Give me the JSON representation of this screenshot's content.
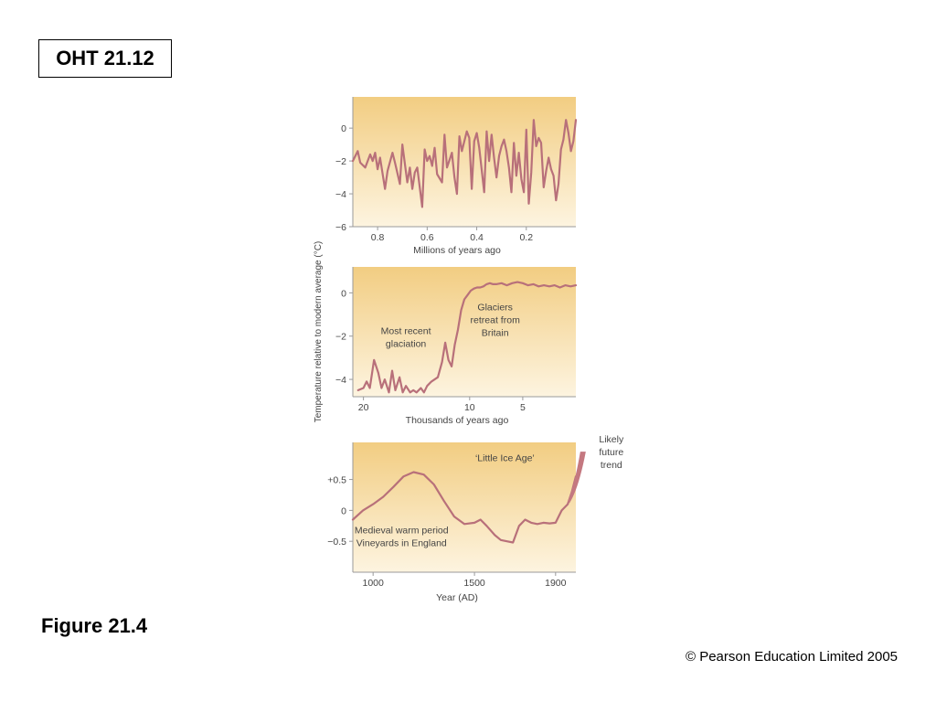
{
  "slide": {
    "oht_label": "OHT 21.12",
    "figure_label": "Figure 21.4",
    "copyright": "© Pearson Education Limited 2005"
  },
  "colors": {
    "line": "#b8707a",
    "panel_top": "#f2cd82",
    "panel_bottom": "#fdf4e0",
    "axis": "#9a9a9a",
    "future_band": "#c47880"
  },
  "chart_data": [
    {
      "type": "line",
      "ylabel": "Temperature relative to modern average (°C)",
      "xlabel": "Millions of years ago",
      "x_reversed": true,
      "xlim": [
        0.9,
        0.0
      ],
      "ylim": [
        -6,
        1.9
      ],
      "xticks": [
        0.8,
        0.6,
        0.4,
        0.2
      ],
      "xtick_labels": [
        "0.8",
        "0.6",
        "0.4",
        "0.2"
      ],
      "yticks": [
        0,
        -2,
        -4,
        -6
      ],
      "ytick_labels": [
        "0",
        "−2",
        "−4",
        "−6"
      ],
      "series": [
        {
          "x": [
            0.9,
            0.88,
            0.87,
            0.85,
            0.83,
            0.82,
            0.81,
            0.8,
            0.79,
            0.77,
            0.76,
            0.74,
            0.73,
            0.71,
            0.7,
            0.68,
            0.67,
            0.66,
            0.65,
            0.64,
            0.62,
            0.61,
            0.6,
            0.59,
            0.58,
            0.57,
            0.56,
            0.54,
            0.53,
            0.52,
            0.5,
            0.49,
            0.48,
            0.47,
            0.46,
            0.44,
            0.43,
            0.42,
            0.41,
            0.4,
            0.39,
            0.37,
            0.36,
            0.35,
            0.34,
            0.33,
            0.32,
            0.31,
            0.3,
            0.29,
            0.28,
            0.27,
            0.26,
            0.25,
            0.24,
            0.23,
            0.22,
            0.21,
            0.2,
            0.19,
            0.18,
            0.17,
            0.16,
            0.15,
            0.14,
            0.13,
            0.12,
            0.11,
            0.1,
            0.09,
            0.08,
            0.07,
            0.06,
            0.05,
            0.04,
            0.03,
            0.02,
            0.01,
            0.0
          ],
          "y": [
            -2.0,
            -1.4,
            -2.1,
            -2.4,
            -1.6,
            -2.0,
            -1.5,
            -2.5,
            -1.8,
            -3.7,
            -2.6,
            -1.5,
            -2.1,
            -3.4,
            -1.0,
            -3.3,
            -2.4,
            -3.7,
            -2.7,
            -2.4,
            -4.8,
            -1.3,
            -2.0,
            -1.7,
            -2.3,
            -1.2,
            -2.8,
            -3.3,
            -0.4,
            -2.4,
            -1.5,
            -3.0,
            -4.0,
            -0.5,
            -1.4,
            -0.2,
            -0.6,
            -3.7,
            -0.8,
            -0.3,
            -1.2,
            -3.9,
            -0.2,
            -2.0,
            -0.4,
            -1.8,
            -3.0,
            -1.7,
            -1.1,
            -0.7,
            -1.4,
            -2.4,
            -3.9,
            -0.9,
            -2.9,
            -1.5,
            -3.1,
            -3.9,
            -0.1,
            -4.6,
            -2.7,
            0.5,
            -1.1,
            -0.6,
            -0.9,
            -3.6,
            -2.6,
            -1.8,
            -2.5,
            -2.9,
            -4.4,
            -3.4,
            -1.3,
            -0.7,
            0.5,
            -0.3,
            -1.4,
            -0.8,
            0.5
          ]
        }
      ]
    },
    {
      "type": "line",
      "xlabel": "Thousands of years ago",
      "x_reversed": true,
      "xlim": [
        21,
        0
      ],
      "ylim": [
        -4.8,
        1.2
      ],
      "xticks": [
        20,
        10,
        5
      ],
      "xtick_labels": [
        "20",
        "10",
        "5"
      ],
      "yticks": [
        0,
        -2,
        -4
      ],
      "ytick_labels": [
        "0",
        "−2",
        "−4"
      ],
      "annotations": [
        {
          "lines": [
            "Most recent",
            "glaciation"
          ],
          "x": 16,
          "y": -1.9
        },
        {
          "lines": [
            "Glaciers",
            "retreat from",
            "Britain"
          ],
          "x": 7.6,
          "y": -0.8
        }
      ],
      "series": [
        {
          "x": [
            20.5,
            20.0,
            19.7,
            19.4,
            19.0,
            18.6,
            18.3,
            18.0,
            17.6,
            17.3,
            17.0,
            16.6,
            16.3,
            16.0,
            15.6,
            15.3,
            15.0,
            14.6,
            14.3,
            14.0,
            13.6,
            13.3,
            13.0,
            12.6,
            12.3,
            12.0,
            11.7,
            11.4,
            11.1,
            10.8,
            10.5,
            10.2,
            9.9,
            9.6,
            9.3,
            9.0,
            8.7,
            8.4,
            8.1,
            7.8,
            7.5,
            7.0,
            6.5,
            6.0,
            5.5,
            5.0,
            4.5,
            4.0,
            3.5,
            3.0,
            2.5,
            2.0,
            1.5,
            1.0,
            0.5,
            0.0
          ],
          "y": [
            -4.5,
            -4.4,
            -4.1,
            -4.4,
            -3.1,
            -3.7,
            -4.4,
            -4.0,
            -4.6,
            -3.6,
            -4.5,
            -3.9,
            -4.6,
            -4.3,
            -4.6,
            -4.5,
            -4.6,
            -4.4,
            -4.6,
            -4.3,
            -4.1,
            -4.0,
            -3.9,
            -3.2,
            -2.3,
            -3.1,
            -3.4,
            -2.4,
            -1.7,
            -0.8,
            -0.3,
            -0.1,
            0.1,
            0.2,
            0.25,
            0.25,
            0.3,
            0.4,
            0.45,
            0.4,
            0.4,
            0.45,
            0.35,
            0.45,
            0.5,
            0.45,
            0.35,
            0.4,
            0.3,
            0.35,
            0.3,
            0.35,
            0.25,
            0.35,
            0.3,
            0.35
          ]
        }
      ]
    },
    {
      "type": "line",
      "xlabel": "Year (AD)",
      "xlim": [
        900,
        2000
      ],
      "ylim": [
        -1.0,
        1.1
      ],
      "xticks": [
        1000,
        1500,
        1900
      ],
      "xtick_labels": [
        "1000",
        "1500",
        "1900"
      ],
      "yticks": [
        0.5,
        0,
        -0.5
      ],
      "ytick_labels": [
        "+0.5",
        "0",
        "−0.5"
      ],
      "annotations": [
        {
          "lines": [
            "‘Little Ice Age’"
          ],
          "x": 1650,
          "y": 0.8
        },
        {
          "lines": [
            "Medieval warm period",
            "Vineyards in England"
          ],
          "x": 1140,
          "y": -0.37
        },
        {
          "lines": [
            "Likely",
            "future",
            "trend"
          ],
          "x": 2175,
          "y": 1.1
        }
      ],
      "future_trend": {
        "x_start": 1960,
        "x_end": 2040,
        "y_start": 0.15,
        "y_end": 0.95
      },
      "series": [
        {
          "x": [
            900,
            950,
            1000,
            1050,
            1100,
            1150,
            1200,
            1250,
            1300,
            1350,
            1400,
            1450,
            1500,
            1530,
            1560,
            1600,
            1630,
            1660,
            1690,
            1720,
            1750,
            1780,
            1810,
            1840,
            1870,
            1900,
            1930,
            1960,
            1980,
            2000
          ],
          "y": [
            -0.15,
            0.0,
            0.1,
            0.22,
            0.38,
            0.55,
            0.62,
            0.58,
            0.42,
            0.15,
            -0.1,
            -0.22,
            -0.2,
            -0.15,
            -0.25,
            -0.4,
            -0.48,
            -0.5,
            -0.52,
            -0.25,
            -0.15,
            -0.2,
            -0.22,
            -0.2,
            -0.21,
            -0.2,
            0.0,
            0.1,
            0.3,
            0.55
          ]
        }
      ]
    }
  ]
}
